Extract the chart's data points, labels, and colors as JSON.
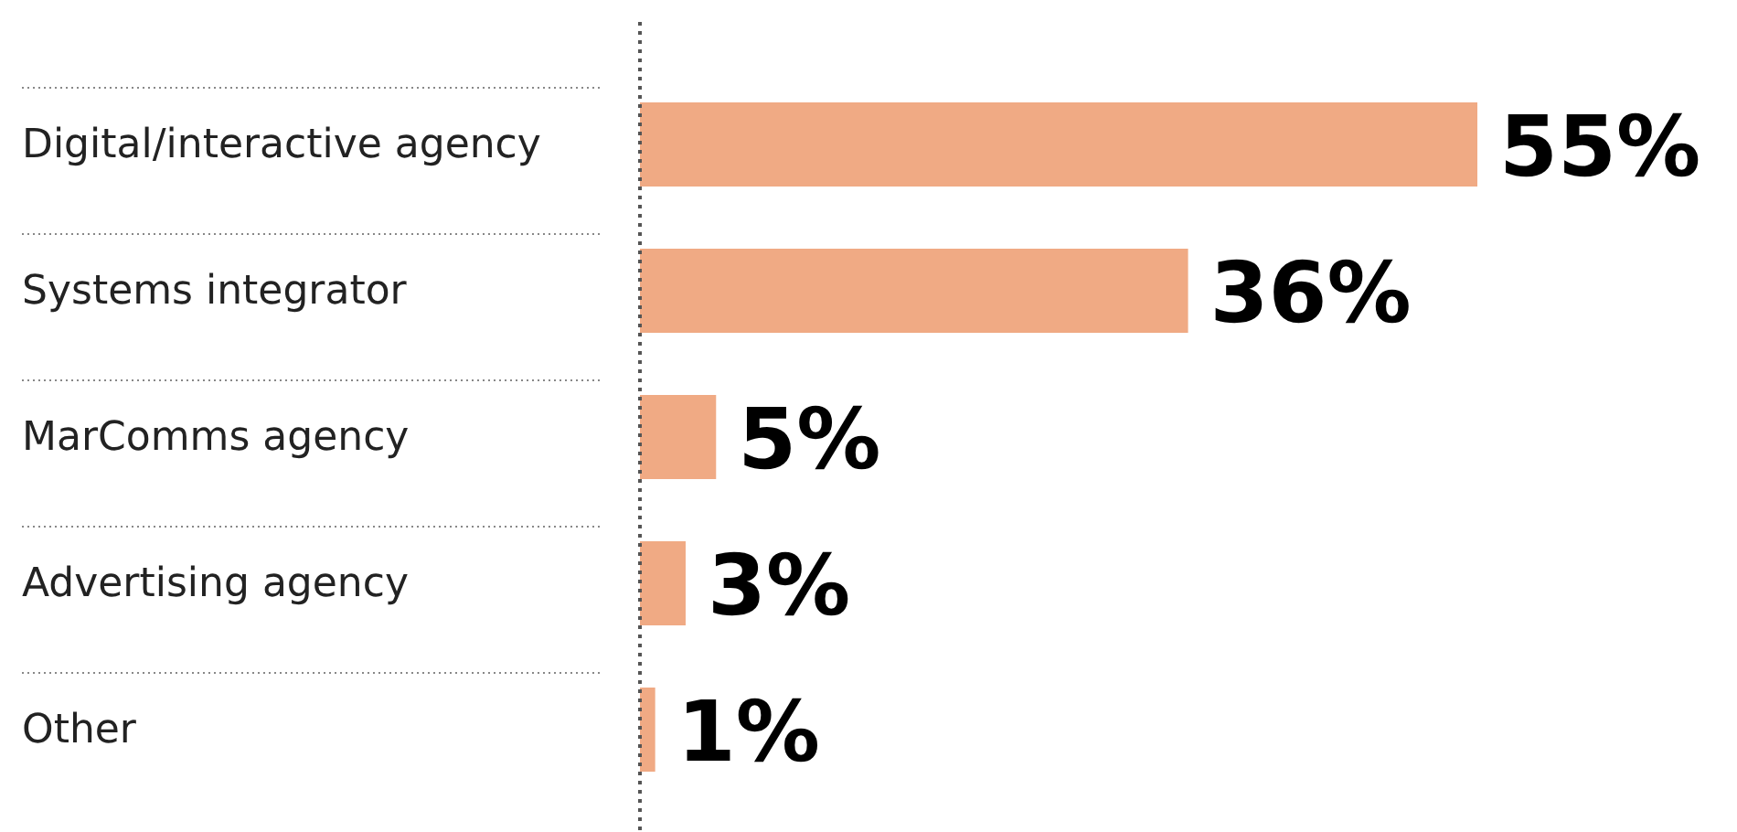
{
  "chart_data": {
    "type": "bar",
    "orientation": "horizontal",
    "relative": false,
    "categories": [
      "Digital/interactive agency",
      "Systems integrator",
      "MarComms agency",
      "Advertising agency",
      "Other"
    ],
    "values": [
      55,
      36,
      5,
      3,
      1
    ],
    "value_labels": [
      "55%",
      "36%",
      "5%",
      "3%",
      "1%"
    ],
    "color": "#f0aa84"
  }
}
